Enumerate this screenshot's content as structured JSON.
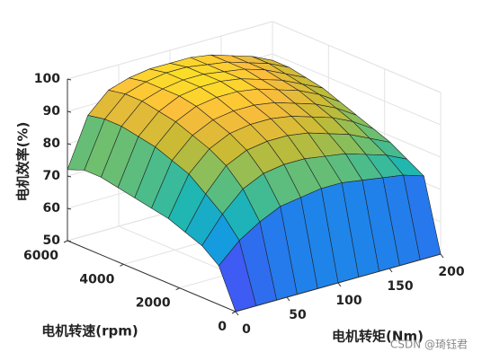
{
  "chart_data": {
    "type": "surface",
    "xlabel": "电机转矩(Nm)",
    "ylabel": "电机转速(rpm)",
    "zlabel": "电机效率(%)",
    "x": [
      0,
      20,
      40,
      60,
      80,
      100,
      120,
      140,
      160,
      180,
      200
    ],
    "y": [
      0,
      600,
      1200,
      1800,
      2400,
      3000,
      3600,
      4200,
      4800,
      5400,
      6000
    ],
    "z": [
      [
        50,
        50,
        50,
        50,
        50,
        50,
        50,
        50,
        50,
        50,
        50
      ],
      [
        62,
        68,
        72,
        75,
        76,
        77,
        77,
        76,
        75,
        74,
        72
      ],
      [
        66,
        74,
        80,
        83,
        84,
        84,
        83,
        82,
        80,
        78,
        75
      ],
      [
        68,
        78,
        85,
        88,
        89,
        89,
        88,
        86,
        84,
        81,
        78
      ],
      [
        70,
        82,
        88,
        91,
        92,
        92,
        91,
        89,
        87,
        84,
        80
      ],
      [
        71,
        84,
        90,
        93,
        94,
        94,
        93,
        91,
        89,
        86,
        82
      ],
      [
        72,
        86,
        92,
        95,
        96,
        96,
        95,
        93,
        91,
        88,
        84
      ],
      [
        73,
        87,
        93,
        96,
        97,
        97,
        96,
        94,
        92,
        89,
        86
      ],
      [
        74,
        88,
        94,
        96,
        97,
        97,
        96,
        95,
        93,
        90,
        87
      ],
      [
        74,
        88,
        94,
        96,
        97,
        97,
        96,
        95,
        93,
        91,
        88
      ],
      [
        72,
        87,
        93,
        95,
        96,
        96,
        96,
        95,
        93,
        91,
        88
      ]
    ],
    "xlim": [
      0,
      200
    ],
    "xticks": [
      0,
      50,
      100,
      150,
      200
    ],
    "ylim": [
      0,
      6000
    ],
    "yticks": [
      0,
      2000,
      4000,
      6000
    ],
    "zlim": [
      50,
      100
    ],
    "zticks": [
      50,
      60,
      70,
      80,
      90,
      100
    ],
    "colormap": "parula",
    "grid": true,
    "watermark": "CSDN @琦钰君"
  }
}
